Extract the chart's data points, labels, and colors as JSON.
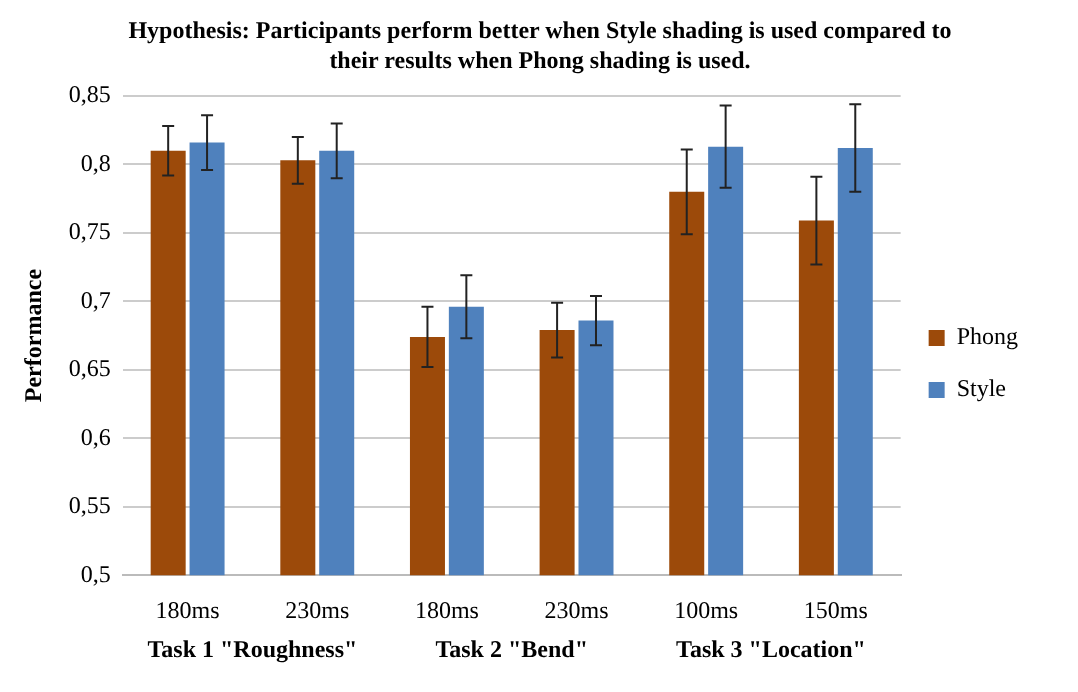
{
  "chart_data": {
    "type": "bar",
    "title": "Hypothesis: Participants perform better when Style shading is used compared to their results when Phong shading is used.",
    "ylabel": "Performance",
    "categories": [
      "180ms",
      "230ms",
      "180ms",
      "230ms",
      "100ms",
      "150ms"
    ],
    "series": [
      {
        "name": "Phong",
        "color": "#9c4a0a",
        "values": [
          0.81,
          0.803,
          0.674,
          0.679,
          0.78,
          0.759
        ],
        "errors": [
          0.018,
          0.017,
          0.022,
          0.02,
          0.031,
          0.032
        ]
      },
      {
        "name": "Style",
        "color": "#4f81bd",
        "values": [
          0.816,
          0.81,
          0.696,
          0.686,
          0.813,
          0.812
        ],
        "errors": [
          0.02,
          0.02,
          0.023,
          0.018,
          0.03,
          0.032
        ]
      }
    ],
    "annotations": [
      "Task 1 \"Roughness\"",
      "Task 2 \"Bend\"",
      "Task 3 \"Location\""
    ],
    "ylim": [
      0.5,
      0.85
    ],
    "yticks": [
      {
        "value": 0.5,
        "label": "0,5"
      },
      {
        "value": 0.55,
        "label": "0,55"
      },
      {
        "value": 0.6,
        "label": "0,6"
      },
      {
        "value": 0.65,
        "label": "0,65"
      },
      {
        "value": 0.7,
        "label": "0,7"
      },
      {
        "value": 0.75,
        "label": "0,75"
      },
      {
        "value": 0.8,
        "label": "0,8"
      },
      {
        "value": 0.85,
        "label": "0,85"
      }
    ],
    "grid": "y",
    "legend": "right"
  }
}
